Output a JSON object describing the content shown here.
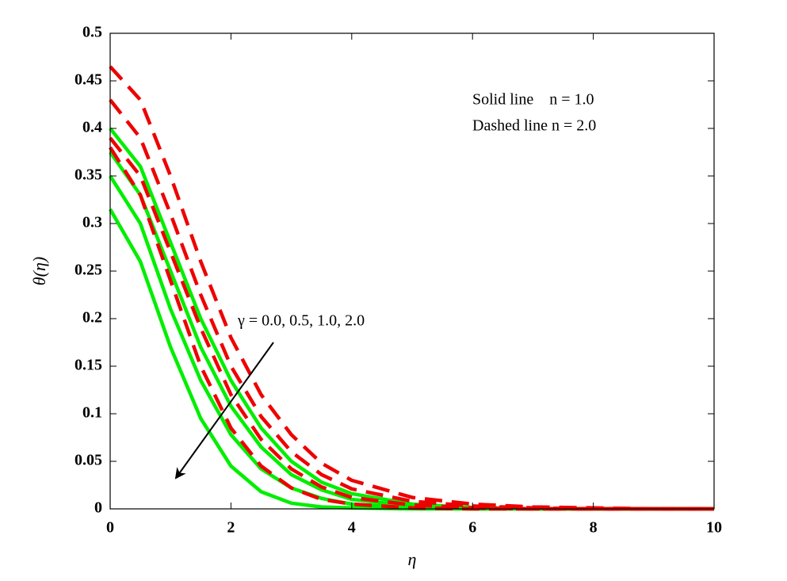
{
  "chart_data": {
    "type": "line",
    "xlabel": "η",
    "ylabel": "θ(η)",
    "annotations": [
      "Solid line    n = 1.0",
      "Dashed line n = 2.0",
      "γ = 0.0, 0.5, 1.0, 2.0"
    ],
    "x": [
      0,
      0.5,
      1,
      1.5,
      2,
      2.5,
      3,
      3.5,
      4,
      5,
      6,
      7,
      8,
      9,
      10
    ],
    "series": [
      {
        "color": "#00ee00",
        "dash": "solid",
        "values": [
          0.4,
          0.36,
          0.28,
          0.2,
          0.135,
          0.085,
          0.05,
          0.028,
          0.016,
          0.005,
          0.0015,
          0,
          0,
          0,
          0
        ]
      },
      {
        "color": "#00ee00",
        "dash": "solid",
        "values": [
          0.375,
          0.33,
          0.25,
          0.17,
          0.108,
          0.065,
          0.036,
          0.02,
          0.01,
          0.003,
          0.001,
          0,
          0,
          0,
          0
        ]
      },
      {
        "color": "#00ee00",
        "dash": "solid",
        "values": [
          0.35,
          0.3,
          0.21,
          0.135,
          0.078,
          0.042,
          0.022,
          0.011,
          0.005,
          0.001,
          0,
          0,
          0,
          0,
          0
        ]
      },
      {
        "color": "#00ee00",
        "dash": "solid",
        "values": [
          0.315,
          0.26,
          0.17,
          0.095,
          0.045,
          0.018,
          0.006,
          0.002,
          0.001,
          0,
          0,
          0,
          0,
          0,
          0
        ]
      },
      {
        "color": "#ee0000",
        "dash": "dashed",
        "values": [
          0.465,
          0.43,
          0.35,
          0.26,
          0.18,
          0.12,
          0.078,
          0.048,
          0.03,
          0.012,
          0.005,
          0.002,
          0.001,
          0,
          0
        ]
      },
      {
        "color": "#ee0000",
        "dash": "dashed",
        "values": [
          0.43,
          0.39,
          0.31,
          0.225,
          0.15,
          0.097,
          0.06,
          0.036,
          0.021,
          0.008,
          0.003,
          0.001,
          0,
          0,
          0
        ]
      },
      {
        "color": "#ee0000",
        "dash": "dashed",
        "values": [
          0.39,
          0.35,
          0.27,
          0.19,
          0.12,
          0.073,
          0.042,
          0.023,
          0.012,
          0.004,
          0.001,
          0,
          0,
          0,
          0
        ]
      },
      {
        "color": "#ee0000",
        "dash": "dashed",
        "values": [
          0.38,
          0.33,
          0.24,
          0.15,
          0.085,
          0.045,
          0.022,
          0.01,
          0.005,
          0.001,
          0,
          0,
          0,
          0,
          0
        ]
      }
    ],
    "xlim": [
      0,
      10
    ],
    "xticks": [
      0,
      2,
      4,
      6,
      8,
      10
    ],
    "ylim": [
      0,
      0.5
    ],
    "yticks": [
      0,
      0.05,
      0.1,
      0.15,
      0.2,
      0.25,
      0.3,
      0.35,
      0.4,
      0.45,
      0.5
    ],
    "grid": false
  }
}
